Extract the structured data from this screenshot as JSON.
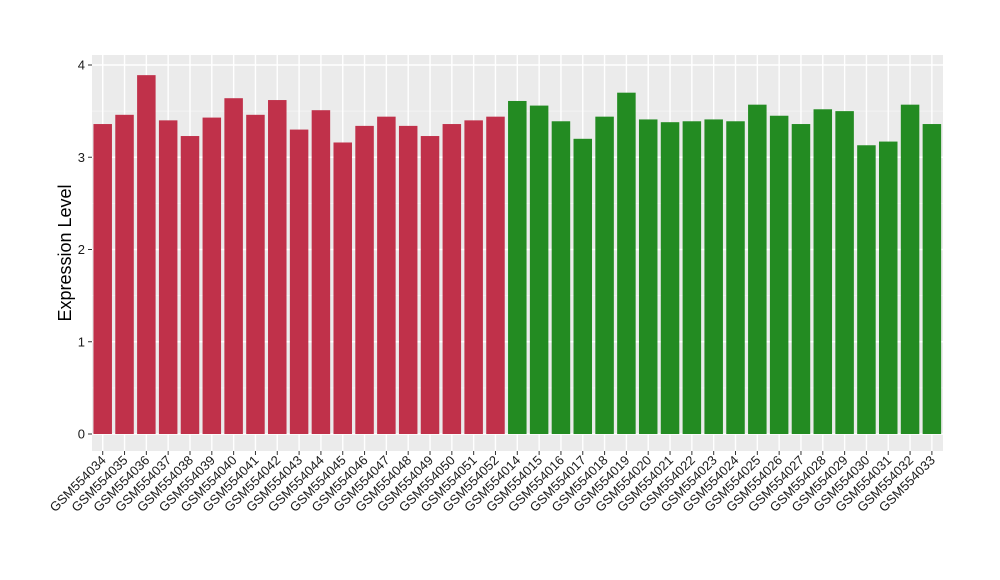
{
  "chart_data": {
    "type": "bar",
    "title": "",
    "xlabel": "",
    "ylabel": "Expression Level",
    "ylim": [
      0,
      4.1
    ],
    "yticks": [
      0,
      1,
      2,
      3,
      4
    ],
    "grid": true,
    "legend": "none",
    "colors": {
      "panel": "#ebebeb",
      "grid_major": "#ffffff",
      "grid_minor": "#f5f5f5",
      "group1": "#c0314a",
      "group2": "#238b22"
    },
    "categories": [
      "GSM554034",
      "GSM554035",
      "GSM554036",
      "GSM554037",
      "GSM554038",
      "GSM554039",
      "GSM554040",
      "GSM554041",
      "GSM554042",
      "GSM554043",
      "GSM554044",
      "GSM554045",
      "GSM554046",
      "GSM554047",
      "GSM554048",
      "GSM554049",
      "GSM554050",
      "GSM554051",
      "GSM554052",
      "GSM554014",
      "GSM554015",
      "GSM554016",
      "GSM554017",
      "GSM554018",
      "GSM554019",
      "GSM554020",
      "GSM554021",
      "GSM554022",
      "GSM554023",
      "GSM554024",
      "GSM554025",
      "GSM554026",
      "GSM554027",
      "GSM554028",
      "GSM554029",
      "GSM554030",
      "GSM554031",
      "GSM554032",
      "GSM554033"
    ],
    "values": [
      3.36,
      3.46,
      3.89,
      3.4,
      3.23,
      3.43,
      3.64,
      3.46,
      3.62,
      3.3,
      3.51,
      3.16,
      3.34,
      3.44,
      3.34,
      3.23,
      3.36,
      3.4,
      3.44,
      3.61,
      3.56,
      3.39,
      3.2,
      3.44,
      3.7,
      3.41,
      3.38,
      3.39,
      3.41,
      3.39,
      3.57,
      3.45,
      3.36,
      3.52,
      3.5,
      3.13,
      3.17,
      3.57,
      3.36
    ],
    "group_split": 19
  }
}
